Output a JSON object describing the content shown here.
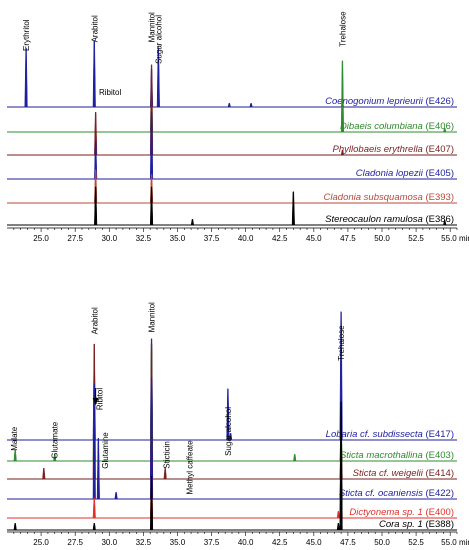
{
  "chart_data": [
    {
      "type": "line",
      "title": "",
      "xlabel": "min",
      "ylabel": "",
      "xlim": [
        22.5,
        55.5
      ],
      "x_ticks": [
        "25.0",
        "27.5",
        "30.0",
        "32.5",
        "35.0",
        "37.5",
        "40.0",
        "42.5",
        "45.0",
        "47.5",
        "50.0",
        "52.5",
        "55.0 min"
      ],
      "x_tick_values": [
        25.0,
        27.5,
        30.0,
        32.5,
        35.0,
        37.5,
        40.0,
        42.5,
        45.0,
        47.5,
        50.0,
        52.5,
        55.0
      ],
      "grid": false,
      "peak_labels": [
        {
          "text": "Erythritol",
          "x": 23.9
        },
        {
          "text": "Arabitol",
          "x": 28.9
        },
        {
          "text": "Ribitol",
          "x": 29.1
        },
        {
          "text": "Mannitol",
          "x": 33.1
        },
        {
          "text": "Sugar alcohol",
          "x": 33.6
        },
        {
          "text": "Trehalose",
          "x": 47.1
        }
      ],
      "series": [
        {
          "species": "Coenogonium leprieurii",
          "code": "(E426)",
          "color": "#1f1f9e",
          "peaks": [
            [
              23.9,
              0.62
            ],
            [
              28.9,
              0.7
            ],
            [
              33.1,
              0.4
            ],
            [
              33.6,
              0.62
            ],
            [
              38.8,
              0.04
            ],
            [
              40.4,
              0.04
            ],
            [
              47.1,
              0.04
            ]
          ]
        },
        {
          "species": "Dibaeis columbiana",
          "code": "(E406)",
          "color": "#2e8b2e",
          "peaks": [
            [
              33.1,
              0.45
            ],
            [
              47.1,
              0.75
            ],
            [
              54.6,
              0.04
            ]
          ]
        },
        {
          "species": "Phyllobaeis erythrella",
          "code": "(E407)",
          "color": "#7a1f1f",
          "peaks": [
            [
              29.0,
              0.45
            ],
            [
              33.1,
              0.95
            ],
            [
              47.1,
              0.05
            ]
          ]
        },
        {
          "species": "Cladonia lopezii",
          "code": "(E405)",
          "color": "#1f1f9e",
          "peaks": [
            [
              29.0,
              0.4
            ],
            [
              33.1,
              0.7
            ]
          ]
        },
        {
          "species": "Cladonia subsquamosa",
          "code": "(E393)",
          "color": "#b84a3a",
          "peaks": [
            [
              29.0,
              0.35
            ],
            [
              33.1,
              0.3
            ]
          ]
        },
        {
          "species": "Stereocaulon ramulosa",
          "code": "(E386)",
          "color": "#000000",
          "peaks": [
            [
              29.0,
              0.4
            ],
            [
              33.1,
              0.4
            ],
            [
              36.1,
              0.06
            ],
            [
              43.5,
              0.35
            ],
            [
              54.6,
              0.05
            ]
          ]
        }
      ]
    },
    {
      "type": "line",
      "title": "",
      "xlabel": "min",
      "ylabel": "",
      "xlim": [
        22.5,
        55.5
      ],
      "x_ticks": [
        "25.0",
        "27.5",
        "30.0",
        "32.5",
        "35.0",
        "37.5",
        "40.0",
        "42.5",
        "45.0",
        "47.5",
        "50.0",
        "52.5",
        "55.0 min"
      ],
      "x_tick_values": [
        25.0,
        27.5,
        30.0,
        32.5,
        35.0,
        37.5,
        40.0,
        42.5,
        45.0,
        47.5,
        50.0,
        52.5,
        55.0
      ],
      "grid": false,
      "peak_labels": [
        {
          "text": "Malate",
          "x": 23.0
        },
        {
          "text": "Glutamate",
          "x": 26.0
        },
        {
          "text": "Arabitol",
          "x": 28.9
        },
        {
          "text": "Ribitol",
          "x": 29.3
        },
        {
          "text": "Glutamine",
          "x": 29.7
        },
        {
          "text": "Mannitol",
          "x": 33.1
        },
        {
          "text": "Sticticin",
          "x": 34.2
        },
        {
          "text": "Methyl caffeate",
          "x": 35.9
        },
        {
          "text": "Sugar alcohol",
          "x": 38.7
        },
        {
          "text": "Trehalose",
          "x": 47.0
        }
      ],
      "series": [
        {
          "species": "Lobaria",
          "species_suffix": "cf. subdissecta",
          "code": "(E417)",
          "color": "#1f1f9e",
          "peaks": [
            [
              28.9,
              0.55
            ],
            [
              33.1,
              0.75
            ],
            [
              38.7,
              0.38
            ],
            [
              38.9,
              0.05
            ],
            [
              47.0,
              0.95
            ]
          ]
        },
        {
          "species": "Sticta macrothallina",
          "code": "(E403)",
          "color": "#2e8b2e",
          "peaks": [
            [
              23.1,
              0.08
            ],
            [
              26.0,
              0.05
            ],
            [
              28.9,
              0.75
            ],
            [
              33.1,
              0.85
            ],
            [
              43.6,
              0.05
            ],
            [
              47.0,
              0.25
            ]
          ]
        },
        {
          "species": "Sticta",
          "species_suffix": "cf. weigelii",
          "code": "(E414)",
          "color": "#7a1f1f",
          "peaks": [
            [
              25.2,
              0.08
            ],
            [
              28.9,
              1.0
            ],
            [
              33.1,
              1.0
            ],
            [
              34.1,
              0.08
            ],
            [
              47.0,
              0.3
            ]
          ]
        },
        {
          "species": "Sticta",
          "species_suffix": "cf. ocaniensis",
          "code": "(E422)",
          "color": "#1f1f9e",
          "peaks": [
            [
              28.9,
              0.85
            ],
            [
              29.2,
              0.45
            ],
            [
              30.5,
              0.05
            ],
            [
              33.1,
              0.9
            ],
            [
              47.0,
              0.25
            ]
          ]
        },
        {
          "species": "Dictyonema",
          "species_suffix": "sp. 1",
          "code": "(E400)",
          "color": "#e0302a",
          "peaks": [
            [
              28.9,
              0.15
            ],
            [
              33.1,
              0.3
            ],
            [
              46.8,
              0.05
            ],
            [
              47.0,
              0.3
            ]
          ]
        },
        {
          "species": "Cora",
          "species_suffix": "sp. 1",
          "code": "(E388)",
          "color": "#000000",
          "peaks": [
            [
              23.1,
              0.05
            ],
            [
              28.9,
              0.05
            ],
            [
              33.1,
              0.4
            ],
            [
              46.8,
              0.05
            ],
            [
              47.0,
              0.95
            ]
          ]
        }
      ]
    }
  ]
}
